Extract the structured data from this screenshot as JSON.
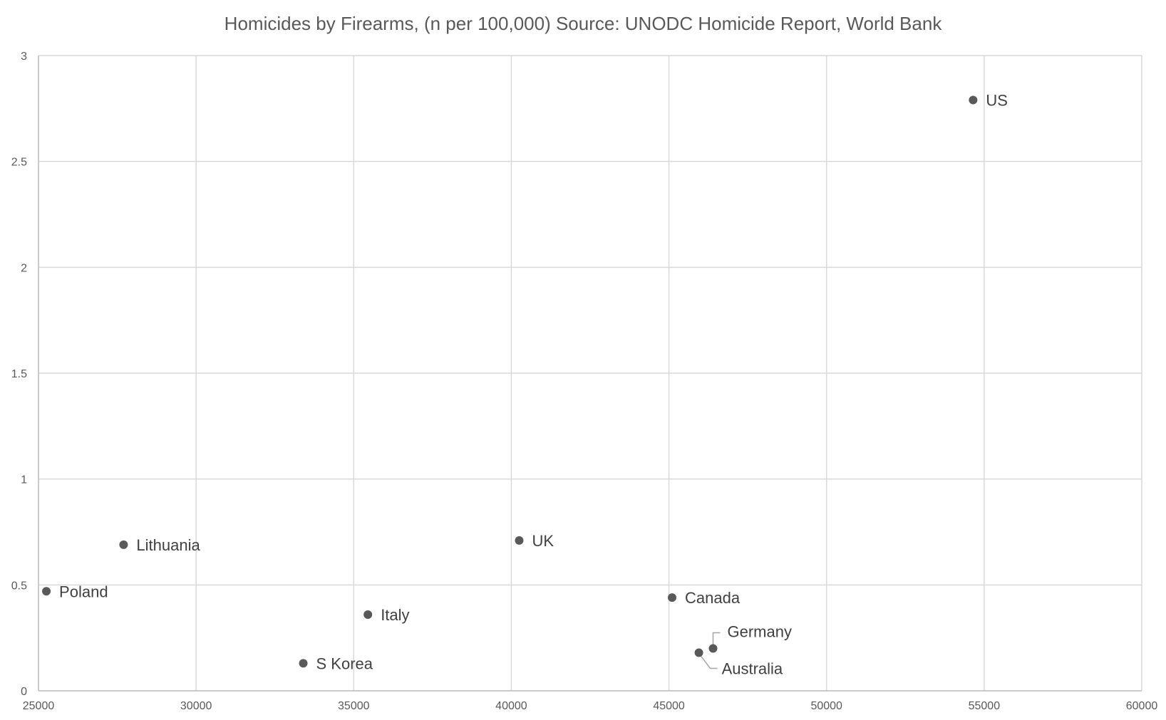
{
  "chart_data": {
    "type": "scatter",
    "title": "Homicides by Firearms, (n per 100,000) Source: UNODC Homicide Report, World Bank",
    "xlabel": "",
    "ylabel": "",
    "xlim": [
      25000,
      60000
    ],
    "ylim": [
      0,
      3
    ],
    "x_ticks": [
      "25000",
      "30000",
      "35000",
      "40000",
      "45000",
      "50000",
      "55000",
      "60000"
    ],
    "y_ticks": [
      "0",
      "0.5",
      "1",
      "1.5",
      "2",
      "2.5",
      "3"
    ],
    "grid": true,
    "legend": "none",
    "point_color": "#595959",
    "points": [
      {
        "label": "US",
        "x": 54650,
        "y": 2.79
      },
      {
        "label": "Lithuania",
        "x": 27700,
        "y": 0.69
      },
      {
        "label": "Poland",
        "x": 25250,
        "y": 0.47
      },
      {
        "label": "UK",
        "x": 40250,
        "y": 0.71
      },
      {
        "label": "Italy",
        "x": 35450,
        "y": 0.36
      },
      {
        "label": "S Korea",
        "x": 33400,
        "y": 0.13
      },
      {
        "label": "Canada",
        "x": 45100,
        "y": 0.44
      },
      {
        "label": "Germany",
        "x": 46400,
        "y": 0.2
      },
      {
        "label": "Australia",
        "x": 45950,
        "y": 0.18
      }
    ]
  }
}
